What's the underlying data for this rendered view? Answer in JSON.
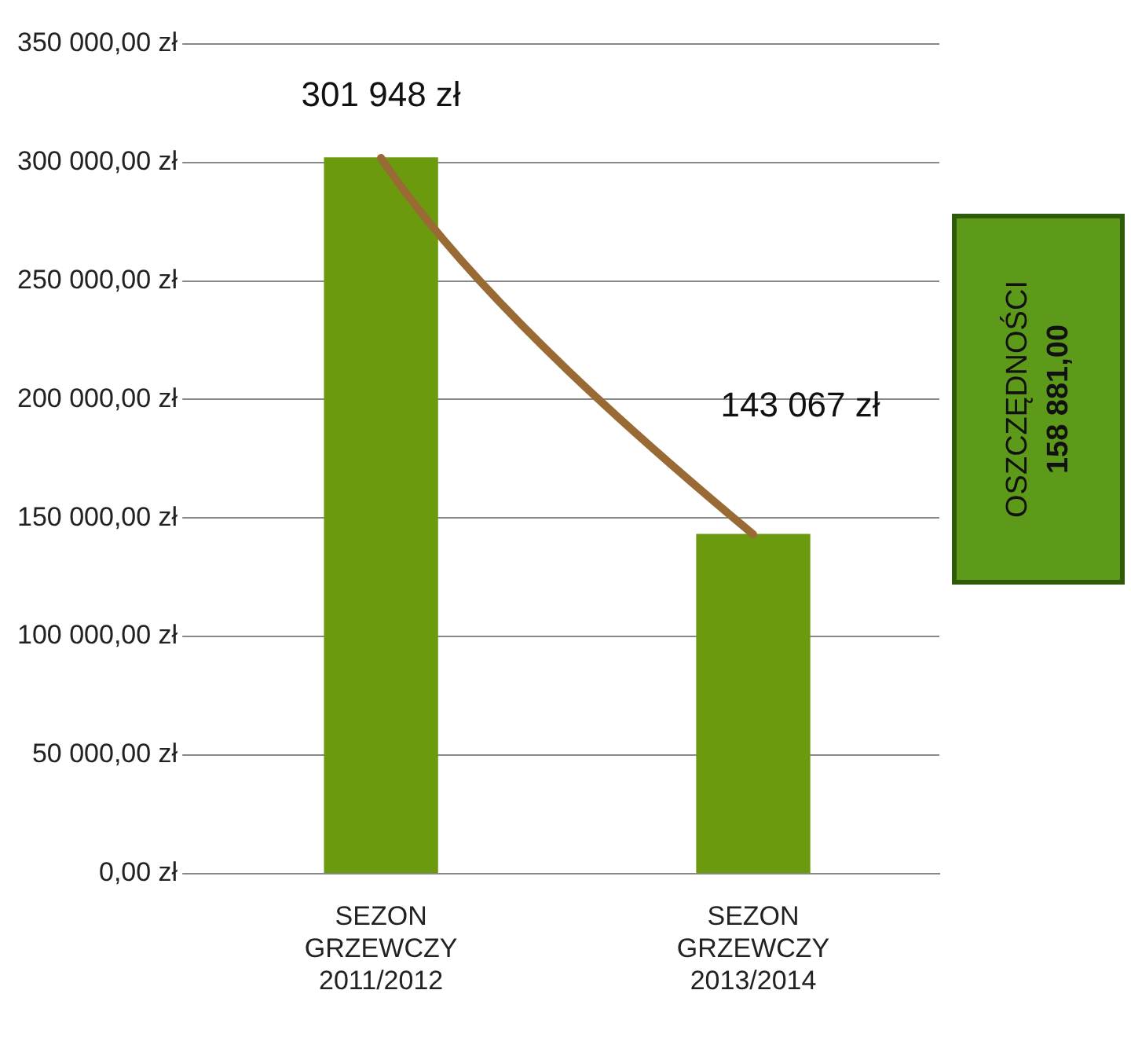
{
  "chart_data": {
    "type": "bar",
    "categories": [
      "SEZON GRZEWCZY 2011/2012",
      "SEZON GRZEWCZY 2013/2014"
    ],
    "values": [
      301948,
      143067
    ],
    "value_labels": [
      "301 948 zł",
      "143 067 zł"
    ],
    "color": "#6b9a0e",
    "ylim": [
      0,
      350000
    ],
    "yticks": [
      {
        "value": 0,
        "label": "0,00 zł"
      },
      {
        "value": 50000,
        "label": "50 000,00 zł"
      },
      {
        "value": 100000,
        "label": "100 000,00 zł"
      },
      {
        "value": 150000,
        "label": "150 000,00 zł"
      },
      {
        "value": 200000,
        "label": "200 000,00 zł"
      },
      {
        "value": 250000,
        "label": "250 000,00 zł"
      },
      {
        "value": 300000,
        "label": "300 000,00 zł"
      },
      {
        "value": 350000,
        "label": "350 000,00 zł"
      }
    ],
    "grid": "y",
    "annotations": [
      "OSZCZĘDNOŚCI",
      "158 881,00"
    ]
  }
}
